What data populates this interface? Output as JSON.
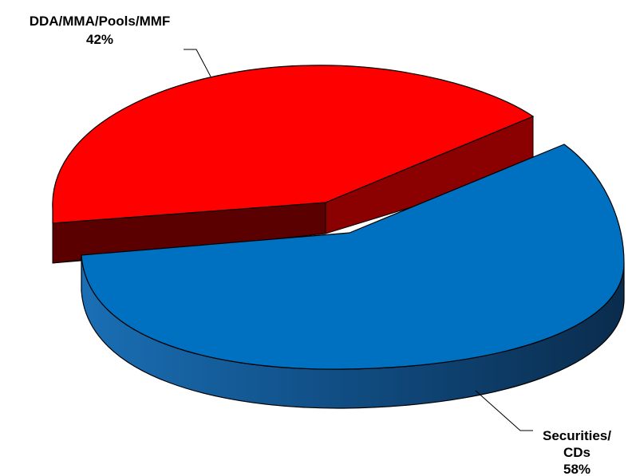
{
  "chart_data": {
    "type": "pie",
    "style": "3d-exploded",
    "slices": [
      {
        "label": "DDA/MMA/Pools/MMF",
        "value": 42,
        "percent_label": "42%",
        "color": "#ff0000",
        "side_color": "#8b0000"
      },
      {
        "label_lines": [
          "Securities/",
          "CDs"
        ],
        "label": "Securities/CDs",
        "value": 58,
        "percent_label": "58%",
        "color": "#0070c0",
        "side_color": "#0d3d6b"
      }
    ]
  }
}
